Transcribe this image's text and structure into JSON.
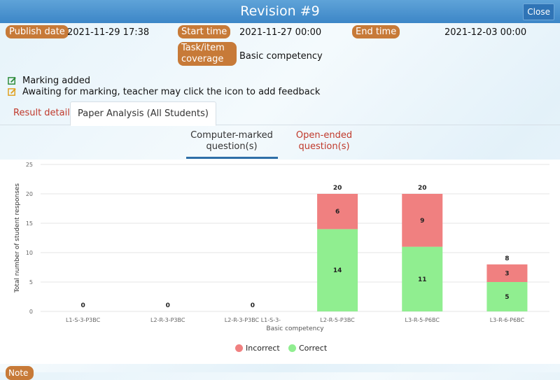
{
  "window": {
    "title": "Revision #9",
    "close_label": "Close"
  },
  "info": {
    "publish_label": "Publish date",
    "publish_value": "2021-11-29 17:38",
    "start_label": "Start time",
    "start_value": "2021-11-27 00:00",
    "end_label": "End time",
    "end_value": "2021-12-03 00:00",
    "coverage_label_1": "Task/item",
    "coverage_label_2": "coverage",
    "coverage_value": "Basic competency"
  },
  "legend_lines": {
    "marking_added": "Marking added",
    "awaiting": "Awaiting for marking, teacher may click the icon to add feedback"
  },
  "tabs": {
    "result_detail": "Result detail",
    "paper_analysis": "Paper Analysis (All Students)"
  },
  "subtabs": {
    "computer_marked_1": "Computer-marked",
    "computer_marked_2": "question(s)",
    "open_ended_1": "Open-ended",
    "open_ended_2": "question(s)"
  },
  "colors": {
    "correct": "#90ee90",
    "incorrect": "#f08080",
    "accent": "#c77a38"
  },
  "chart_data": {
    "type": "bar",
    "stacked": true,
    "xlabel": "Basic competency",
    "ylabel": "Total number of student responses",
    "ylim": [
      0,
      25
    ],
    "yticks": [
      0,
      5,
      10,
      15,
      20,
      25
    ],
    "categories": [
      "L1-S-3-P3BC",
      "L2-R-3-P3BC",
      "L2-R-3-P3BC L1-S-3-",
      "L2-R-5-P3BC",
      "L3-R-5-P6BC",
      "L3-R-6-P6BC"
    ],
    "series": [
      {
        "name": "Correct",
        "color": "#90ee90",
        "values": [
          0,
          0,
          0,
          14,
          11,
          5
        ]
      },
      {
        "name": "Incorrect",
        "color": "#f08080",
        "values": [
          0,
          0,
          0,
          6,
          9,
          3
        ]
      }
    ],
    "totals": [
      0,
      0,
      0,
      20,
      20,
      8
    ],
    "legend": [
      "Incorrect",
      "Correct"
    ],
    "grid": true,
    "legend_position": "bottom"
  },
  "notes_label": "Note"
}
